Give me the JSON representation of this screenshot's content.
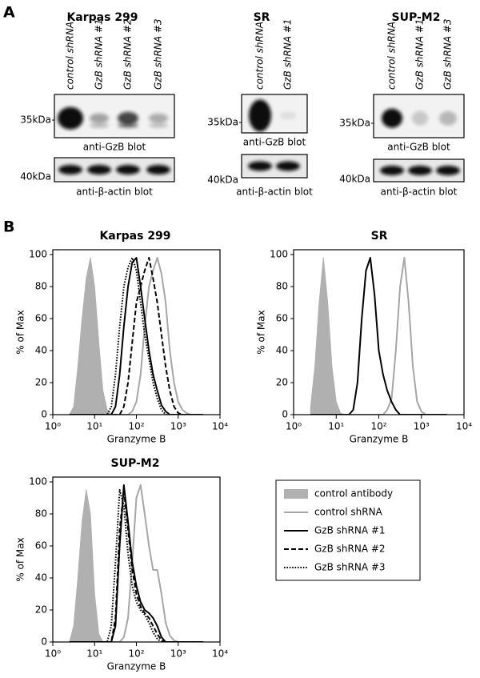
{
  "panel_labels": [
    "A",
    "B"
  ],
  "blots": [
    {
      "title": "Karpas 299",
      "lanes": [
        "control shRNA",
        "GzB shRNA #1",
        "GzB shRNA #2",
        "GzB shRNA #3"
      ],
      "gzb_marker": "35kDa",
      "gzb_caption": "anti-GzB blot",
      "actin_marker": "40kDa",
      "actin_caption": "anti-β-actin blot"
    },
    {
      "title": "SR",
      "lanes": [
        "control shRNA",
        "GzB shRNA #1"
      ],
      "gzb_marker": "35kDa",
      "gzb_caption": "anti-GzB blot",
      "actin_marker": "40kDa",
      "actin_caption": "anti-β-actin blot"
    },
    {
      "title": "SUP-M2",
      "lanes": [
        "control shRNA",
        "GzB shRNA #1",
        "GzB shRNA #3"
      ],
      "gzb_marker": "35kDa",
      "gzb_caption": "anti-GzB blot",
      "actin_marker": "40kDa",
      "actin_caption": "anti-β-actin blot"
    }
  ],
  "chart_data": [
    {
      "type": "line",
      "title": "Karpas 299",
      "x_label": "Granzyme B",
      "y_label": "% of Max",
      "log_x": true,
      "xlim": [
        1,
        10000
      ],
      "ylim": [
        0,
        103
      ],
      "xticks": [
        {
          "value": 1,
          "label": "10⁰"
        },
        {
          "value": 10,
          "label": "10¹"
        },
        {
          "value": 100,
          "label": "10²"
        },
        {
          "value": 1000,
          "label": "10³"
        },
        {
          "value": 10000,
          "label": "10⁴"
        }
      ],
      "yticks": [
        0,
        20,
        40,
        60,
        80,
        100
      ],
      "x": [
        2.51,
        3.16,
        3.98,
        5.01,
        6.31,
        7.94,
        10,
        12.6,
        15.8,
        20,
        25.1,
        31.6,
        39.8,
        50.1,
        63.1,
        79.4,
        100,
        126,
        158,
        200,
        251,
        316,
        398,
        501,
        631,
        794,
        1000,
        1259,
        1585,
        1995,
        2512,
        3162,
        3981
      ],
      "series": [
        {
          "name": "control antibody",
          "color": "#b0b0b0",
          "style": "filled",
          "values": [
            0,
            5,
            30,
            60,
            85,
            98,
            80,
            45,
            15,
            3,
            0,
            0,
            0,
            0,
            0,
            0,
            0,
            0,
            0,
            0,
            0,
            0,
            0,
            0,
            0,
            0,
            0,
            0,
            0,
            0,
            0,
            0,
            0
          ]
        },
        {
          "name": "control shRNA",
          "color": "#a6a6a6",
          "style": "solid",
          "values": [
            0,
            0,
            0,
            0,
            0,
            0,
            0,
            0,
            0,
            0,
            0,
            0,
            0,
            0,
            0,
            2,
            8,
            25,
            55,
            80,
            90,
            98,
            88,
            70,
            40,
            20,
            8,
            3,
            1,
            0,
            0,
            0,
            0
          ]
        },
        {
          "name": "GzB shRNA #1",
          "color": "#000000",
          "style": "solid",
          "values": [
            0,
            0,
            0,
            0,
            0,
            0,
            0,
            0,
            0,
            0,
            0,
            5,
            25,
            55,
            80,
            95,
            98,
            80,
            60,
            40,
            25,
            15,
            6,
            2,
            0,
            0,
            0,
            0,
            0,
            0,
            0,
            0,
            0
          ]
        },
        {
          "name": "GzB shRNA #2",
          "color": "#000000",
          "style": "dashed",
          "values": [
            0,
            0,
            0,
            0,
            0,
            0,
            0,
            0,
            0,
            0,
            0,
            0,
            0,
            5,
            20,
            45,
            70,
            80,
            90,
            98,
            85,
            70,
            50,
            30,
            15,
            5,
            1,
            0,
            0,
            0,
            0,
            0,
            0
          ]
        },
        {
          "name": "GzB shRNA #3",
          "color": "#000000",
          "style": "dotted",
          "values": [
            0,
            0,
            0,
            0,
            0,
            0,
            0,
            0,
            0,
            0,
            5,
            25,
            55,
            80,
            92,
            98,
            90,
            70,
            50,
            35,
            20,
            10,
            3,
            0,
            0,
            0,
            0,
            0,
            0,
            0,
            0,
            0,
            0
          ]
        }
      ]
    },
    {
      "type": "line",
      "title": "SR",
      "x_label": "Granzyme B",
      "y_label": "% of Max",
      "log_x": true,
      "xlim": [
        1,
        10000
      ],
      "ylim": [
        0,
        103
      ],
      "xticks": [
        {
          "value": 1,
          "label": "10⁰"
        },
        {
          "value": 10,
          "label": "10¹"
        },
        {
          "value": 100,
          "label": "10²"
        },
        {
          "value": 1000,
          "label": "10³"
        },
        {
          "value": 10000,
          "label": "10⁴"
        }
      ],
      "yticks": [
        0,
        20,
        40,
        60,
        80,
        100
      ],
      "x": [
        2.51,
        3.16,
        3.98,
        5.01,
        6.31,
        7.94,
        10,
        12.6,
        15.8,
        20,
        25.1,
        31.6,
        39.8,
        50.1,
        63.1,
        79.4,
        100,
        126,
        158,
        200,
        251,
        316,
        398,
        501,
        631,
        794,
        1000,
        1259,
        1585,
        1995,
        2512,
        3162,
        3981
      ],
      "series": [
        {
          "name": "control antibody",
          "color": "#b0b0b0",
          "style": "filled",
          "values": [
            5,
            30,
            70,
            98,
            70,
            30,
            8,
            1,
            0,
            0,
            0,
            0,
            0,
            0,
            0,
            0,
            0,
            0,
            0,
            0,
            0,
            0,
            0,
            0,
            0,
            0,
            0,
            0,
            0,
            0,
            0,
            0,
            0
          ]
        },
        {
          "name": "control shRNA",
          "color": "#a6a6a6",
          "style": "solid",
          "values": [
            0,
            0,
            0,
            0,
            0,
            0,
            0,
            0,
            0,
            0,
            0,
            0,
            0,
            0,
            0,
            0,
            0,
            0,
            3,
            10,
            40,
            80,
            98,
            70,
            30,
            8,
            2,
            0,
            0,
            0,
            0,
            0,
            0
          ]
        },
        {
          "name": "GzB shRNA #1",
          "color": "#000000",
          "style": "solid",
          "values": [
            0,
            0,
            0,
            0,
            0,
            0,
            0,
            0,
            0,
            0,
            3,
            20,
            60,
            90,
            98,
            75,
            40,
            25,
            15,
            8,
            3,
            0,
            0,
            0,
            0,
            0,
            0,
            0,
            0,
            0,
            0,
            0,
            0
          ]
        }
      ]
    },
    {
      "type": "line",
      "title": "SUP-M2",
      "x_label": "Granzyme B",
      "y_label": "% of Max",
      "log_x": true,
      "xlim": [
        1,
        10000
      ],
      "ylim": [
        0,
        103
      ],
      "xticks": [
        {
          "value": 1,
          "label": "10⁰"
        },
        {
          "value": 10,
          "label": "10¹"
        },
        {
          "value": 100,
          "label": "10²"
        },
        {
          "value": 1000,
          "label": "10³"
        },
        {
          "value": 10000,
          "label": "10⁴"
        }
      ],
      "yticks": [
        0,
        20,
        40,
        60,
        80,
        100
      ],
      "x": [
        2.51,
        3.16,
        3.98,
        5.01,
        6.31,
        7.94,
        10,
        12.6,
        15.8,
        20,
        25.1,
        31.6,
        39.8,
        50.1,
        63.1,
        79.4,
        100,
        126,
        158,
        200,
        251,
        316,
        398,
        501,
        631,
        794,
        1000,
        1259,
        1585,
        1995,
        2512,
        3162,
        3981
      ],
      "series": [
        {
          "name": "control antibody",
          "color": "#b0b0b0",
          "style": "filled",
          "values": [
            0,
            10,
            40,
            75,
            95,
            80,
            30,
            5,
            0,
            0,
            0,
            0,
            0,
            0,
            0,
            0,
            0,
            0,
            0,
            0,
            0,
            0,
            0,
            0,
            0,
            0,
            0,
            0,
            0,
            0,
            0,
            0,
            0
          ]
        },
        {
          "name": "control shRNA",
          "color": "#a6a6a6",
          "style": "solid",
          "values": [
            0,
            0,
            0,
            0,
            0,
            0,
            0,
            0,
            0,
            0,
            0,
            0,
            0,
            3,
            15,
            50,
            90,
            98,
            80,
            60,
            45,
            45,
            30,
            12,
            4,
            1,
            0,
            0,
            0,
            0,
            0,
            0,
            0
          ]
        },
        {
          "name": "GzB shRNA #1",
          "color": "#000000",
          "style": "solid",
          "values": [
            0,
            0,
            0,
            0,
            0,
            0,
            0,
            0,
            0,
            0,
            0,
            10,
            60,
            98,
            75,
            50,
            35,
            25,
            20,
            18,
            15,
            10,
            3,
            0,
            0,
            0,
            0,
            0,
            0,
            0,
            0,
            0,
            0
          ]
        },
        {
          "name": "GzB shRNA #2",
          "color": "#000000",
          "style": "dashed",
          "values": [
            0,
            0,
            0,
            0,
            0,
            0,
            0,
            0,
            0,
            0,
            0,
            15,
            70,
            95,
            70,
            45,
            30,
            22,
            18,
            15,
            10,
            5,
            1,
            0,
            0,
            0,
            0,
            0,
            0,
            0,
            0,
            0,
            0
          ]
        },
        {
          "name": "GzB shRNA #3",
          "color": "#000000",
          "style": "dotted",
          "values": [
            0,
            0,
            0,
            0,
            0,
            0,
            0,
            0,
            0,
            0,
            10,
            50,
            95,
            85,
            55,
            35,
            25,
            20,
            17,
            12,
            6,
            2,
            0,
            0,
            0,
            0,
            0,
            0,
            0,
            0,
            0,
            0,
            0
          ]
        }
      ]
    }
  ]
}
